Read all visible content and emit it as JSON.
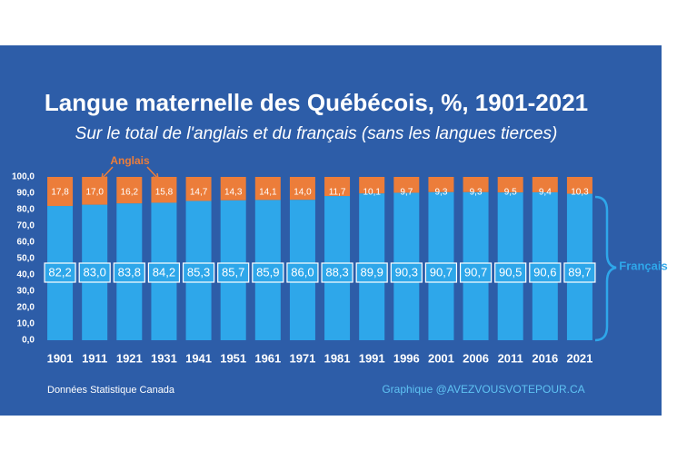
{
  "chart_data": {
    "type": "stacked_bar",
    "title": "Langue maternelle des Québécois, %, 1901-2021",
    "subtitle": "Sur le total de l'anglais et du français (sans les langues tierces)",
    "categories": [
      "1901",
      "1911",
      "1921",
      "1931",
      "1941",
      "1951",
      "1961",
      "1971",
      "1981",
      "1991",
      "1996",
      "2001",
      "2006",
      "2011",
      "2016",
      "2021"
    ],
    "series": [
      {
        "name": "Français",
        "color": "#2ea7ea",
        "values": [
          82.2,
          83.0,
          83.8,
          84.2,
          85.3,
          85.7,
          85.9,
          86.0,
          88.3,
          89.9,
          90.3,
          90.7,
          90.7,
          90.5,
          90.6,
          89.7
        ],
        "value_labels": [
          "82,2",
          "83,0",
          "83,8",
          "84,2",
          "85,3",
          "85,7",
          "85,9",
          "86,0",
          "88,3",
          "89,9",
          "90,3",
          "90,7",
          "90,7",
          "90,5",
          "90,6",
          "89,7"
        ]
      },
      {
        "name": "Anglais",
        "color": "#ec7d3a",
        "values": [
          17.8,
          17.0,
          16.2,
          15.8,
          14.7,
          14.3,
          14.1,
          14.0,
          11.7,
          10.1,
          9.7,
          9.3,
          9.3,
          9.5,
          9.4,
          10.3
        ],
        "value_labels": [
          "17,8",
          "17,0",
          "16,2",
          "15,8",
          "14,7",
          "14,3",
          "14,1",
          "14,0",
          "11,7",
          "10,1",
          "9,7",
          "9,3",
          "9,3",
          "9,5",
          "9,4",
          "10,3"
        ]
      }
    ],
    "ylim": [
      0,
      100
    ],
    "yticks": [
      {
        "value": 0,
        "label": "0,0"
      },
      {
        "value": 10,
        "label": "10,0"
      },
      {
        "value": 20,
        "label": "20,0"
      },
      {
        "value": 30,
        "label": "30,0"
      },
      {
        "value": 40,
        "label": "40,0"
      },
      {
        "value": 50,
        "label": "50,0"
      },
      {
        "value": 60,
        "label": "60,0"
      },
      {
        "value": 70,
        "label": "70,0"
      },
      {
        "value": 80,
        "label": "80,0"
      },
      {
        "value": 90,
        "label": "90,0"
      },
      {
        "value": 100,
        "label": "100,0"
      }
    ],
    "source": "Données Statistique Canada",
    "credit": "Graphique @AVEZVOUSVOTEPOUR.CA"
  }
}
